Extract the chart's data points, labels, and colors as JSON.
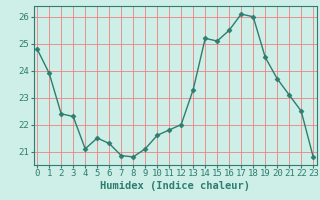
{
  "x": [
    0,
    1,
    2,
    3,
    4,
    5,
    6,
    7,
    8,
    9,
    10,
    11,
    12,
    13,
    14,
    15,
    16,
    17,
    18,
    19,
    20,
    21,
    22,
    23
  ],
  "y": [
    24.8,
    23.9,
    22.4,
    22.3,
    21.1,
    21.5,
    21.3,
    20.85,
    20.8,
    21.1,
    21.6,
    21.8,
    22.0,
    23.3,
    25.2,
    25.1,
    25.5,
    26.1,
    26.0,
    24.5,
    23.7,
    23.1,
    22.5,
    20.8
  ],
  "line_color": "#2e7d6e",
  "marker": "D",
  "marker_size": 2.5,
  "bg_color": "#ceeee8",
  "grid_major_color": "#f08080",
  "grid_minor_color": "#b8e8e0",
  "xlabel": "Humidex (Indice chaleur)",
  "yticks": [
    21,
    22,
    23,
    24,
    25,
    26
  ],
  "xticks": [
    0,
    1,
    2,
    3,
    4,
    5,
    6,
    7,
    8,
    9,
    10,
    11,
    12,
    13,
    14,
    15,
    16,
    17,
    18,
    19,
    20,
    21,
    22,
    23
  ],
  "ylim": [
    20.5,
    26.4
  ],
  "xlim": [
    -0.3,
    23.3
  ],
  "tick_color": "#2e7d6e",
  "label_fontsize": 7.5,
  "tick_fontsize": 6.5
}
